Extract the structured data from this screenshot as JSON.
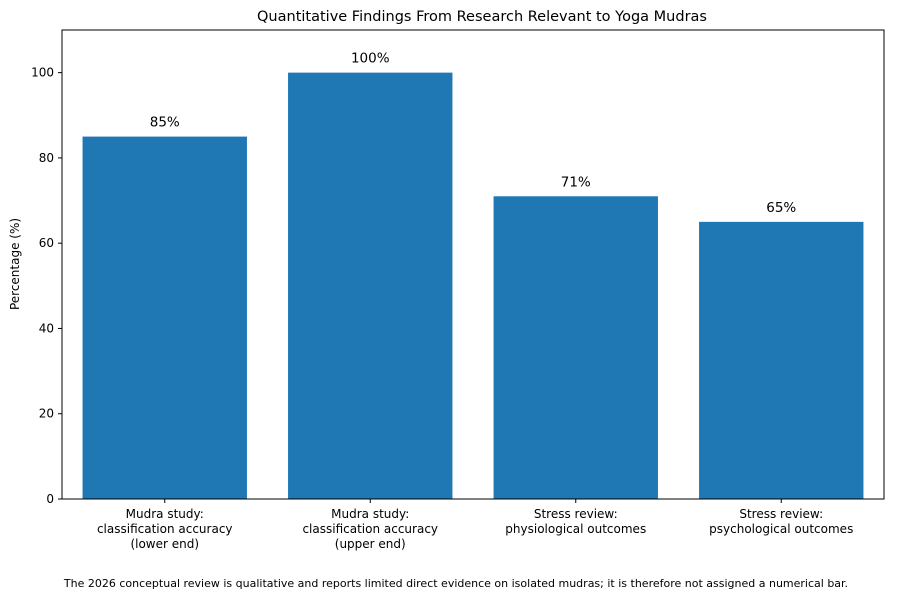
{
  "chart_data": {
    "type": "bar",
    "title": "Quantitative Findings From Research Relevant to Yoga Mudras",
    "xlabel": "",
    "ylabel": "Percentage (%)",
    "ylim": [
      0,
      110
    ],
    "yticks": [
      0,
      20,
      40,
      60,
      80,
      100
    ],
    "grid": false,
    "color": "#1f77b4",
    "categories": [
      [
        "Mudra study:",
        "classification accuracy",
        "(lower end)"
      ],
      [
        "Mudra study:",
        "classification accuracy",
        "(upper end)"
      ],
      [
        "Stress review:",
        "physiological outcomes"
      ],
      [
        "Stress review:",
        "psychological outcomes"
      ]
    ],
    "values": [
      85,
      100,
      71,
      65
    ],
    "data_labels": [
      "85%",
      "100%",
      "71%",
      "65%"
    ]
  },
  "footnote": "The 2026 conceptual review is qualitative and reports limited direct evidence on isolated mudras; it is therefore not assigned a numerical bar."
}
